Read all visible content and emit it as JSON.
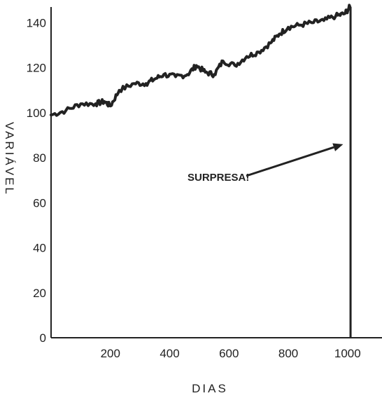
{
  "chart_data": {
    "type": "line",
    "title": "",
    "xlabel": "DIAS",
    "ylabel": "VARIÁVEL",
    "xlim": [
      0,
      1050
    ],
    "ylim": [
      0,
      147
    ],
    "x_ticks": [
      200,
      400,
      600,
      800,
      1000
    ],
    "y_ticks": [
      0,
      20,
      40,
      60,
      80,
      100,
      120,
      140
    ],
    "x_tick_labels": [
      "200",
      "400",
      "600",
      "800",
      "1000"
    ],
    "y_tick_labels": [
      "0",
      "20",
      "40",
      "60",
      "80",
      "100",
      "120",
      "140"
    ],
    "grid": false,
    "series": [
      {
        "points": [
          [
            0,
            99
          ],
          [
            50,
            101
          ],
          [
            100,
            104
          ],
          [
            150,
            104
          ],
          [
            180,
            105
          ],
          [
            200,
            103
          ],
          [
            230,
            110
          ],
          [
            280,
            113
          ],
          [
            320,
            113
          ],
          [
            350,
            115
          ],
          [
            380,
            117
          ],
          [
            420,
            116
          ],
          [
            460,
            117
          ],
          [
            490,
            121
          ],
          [
            520,
            118
          ],
          [
            550,
            117
          ],
          [
            580,
            123
          ],
          [
            620,
            121
          ],
          [
            660,
            125
          ],
          [
            700,
            127
          ],
          [
            740,
            131
          ],
          [
            770,
            135
          ],
          [
            800,
            138
          ],
          [
            840,
            139
          ],
          [
            880,
            140
          ],
          [
            920,
            141
          ],
          [
            960,
            143
          ],
          [
            990,
            144
          ],
          [
            1008,
            147
          ]
        ],
        "color": "#222222"
      }
    ],
    "drop": {
      "x": 1010,
      "from": 147,
      "to": 0
    },
    "annotation": {
      "text": "SURPRESA!",
      "arrow_to": [
        985,
        86
      ]
    }
  }
}
